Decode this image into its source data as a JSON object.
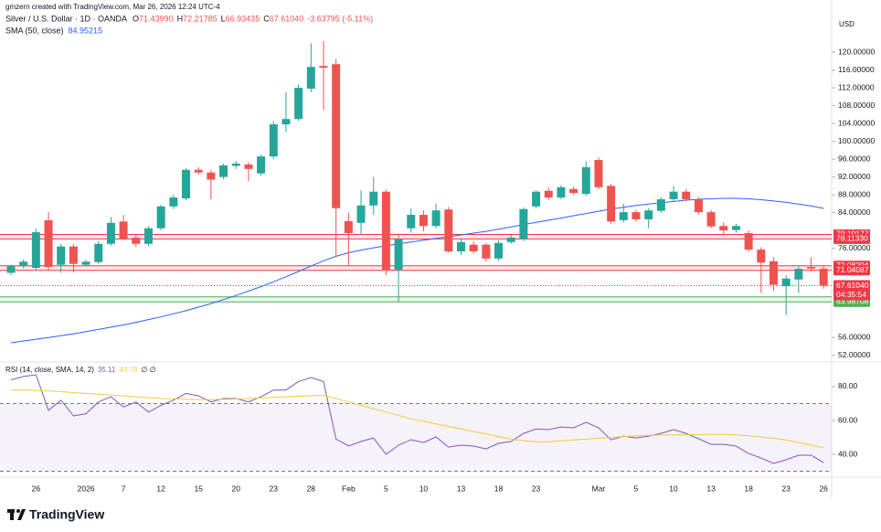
{
  "header": {
    "created": "gmzern created with TradingView.com, Mar 26, 2026 12:24 UTC-4"
  },
  "footer": {
    "brand": "TradingView"
  },
  "chart_data": [
    {
      "type": "candlestick",
      "title": "Silver / U.S. Dollar · 1D · OANDA",
      "ohlc": [
        "O",
        "71.43990",
        "H",
        "72.21785",
        "L",
        "66.93435",
        "C",
        "67.61040",
        "-3.63795 (-5.11%)"
      ],
      "axis_label": "USD",
      "up_color": "#26a69a",
      "down_color": "#ef5350",
      "categories": [
        null,
        null,
        "26",
        null,
        null,
        null,
        "2026",
        null,
        null,
        "7",
        null,
        null,
        "12",
        null,
        null,
        "15",
        null,
        null,
        "20",
        null,
        null,
        "23",
        null,
        null,
        "28",
        null,
        null,
        "Feb",
        null,
        null,
        "5",
        null,
        null,
        "10",
        null,
        null,
        "13",
        null,
        null,
        "18",
        null,
        null,
        "23",
        null,
        null,
        null,
        null,
        "Mar",
        null,
        null,
        "5",
        null,
        null,
        "10",
        null,
        null,
        "13",
        null,
        null,
        "18",
        null,
        null,
        "23",
        null,
        null,
        "26"
      ],
      "open": [
        70.5,
        72,
        71.6,
        82.3,
        72.3,
        76.4,
        72.3,
        72.9,
        77,
        82,
        78.4,
        77,
        80.5,
        85.4,
        87.2,
        93.6,
        93,
        92,
        94.5,
        94.8,
        92.8,
        96.6,
        103.8,
        105,
        111.8,
        116.9,
        117.3,
        82.1,
        81.7,
        85.6,
        88.7,
        71.2,
        80.5,
        83.5,
        81,
        84.7,
        75.3,
        76.8,
        76.8,
        73.7,
        77.4,
        78,
        85.4,
        88.9,
        87.4,
        89.3,
        88.2,
        95.8,
        90,
        82.3,
        84.1,
        82.5,
        84.4,
        87,
        88.7,
        87,
        84.1,
        81,
        80.1,
        79.4,
        75.7,
        73.1,
        67.5,
        69,
        71.8,
        71.4399
      ],
      "high": [
        72.3,
        73.5,
        80.4,
        84.1,
        77,
        77,
        73.4,
        77.6,
        83,
        83.5,
        79,
        81,
        85.8,
        88,
        94,
        94.2,
        93.6,
        95,
        95.6,
        95.3,
        97,
        104.5,
        111,
        112.8,
        122,
        122.5,
        118.5,
        84,
        89,
        92,
        89.2,
        79,
        85,
        84.5,
        86,
        85.3,
        78,
        77.5,
        77.2,
        77.8,
        79,
        85.2,
        89,
        89.6,
        90.2,
        89.8,
        95.5,
        96.4,
        90.5,
        86,
        84.6,
        85,
        87.5,
        90,
        89.3,
        87.5,
        84.6,
        81.8,
        81.5,
        80,
        76.2,
        74,
        70,
        72,
        74,
        72.21785
      ],
      "low": [
        70,
        71.5,
        71,
        71,
        70.5,
        70.6,
        71.8,
        72.5,
        76.5,
        77.8,
        76.3,
        76.5,
        80,
        84.8,
        86.8,
        92.5,
        87,
        91.5,
        93.8,
        91,
        92.3,
        96,
        102,
        104.5,
        111,
        107,
        74,
        72,
        79,
        83.5,
        70,
        64,
        79.5,
        79.8,
        80.5,
        75,
        74.5,
        74.8,
        73,
        73.2,
        77,
        77.6,
        85,
        86.8,
        87,
        88,
        87.8,
        89.2,
        81.5,
        81.8,
        82,
        80.5,
        84,
        86.5,
        86.5,
        83.6,
        80.5,
        79,
        79.5,
        75.2,
        66,
        66.5,
        61,
        66,
        70.8,
        66.93435
      ],
      "close": [
        72,
        73,
        79.6,
        71.8,
        76.4,
        72.5,
        73,
        77,
        81.7,
        78,
        77,
        80.5,
        85.4,
        87.4,
        93.6,
        93,
        91.4,
        94.6,
        95,
        93.8,
        96.6,
        103.8,
        105,
        112,
        116.7,
        116.5,
        85,
        79.4,
        85.6,
        88.7,
        71.2,
        78,
        83.5,
        81,
        84.5,
        75.3,
        77.4,
        75.3,
        73.7,
        77.2,
        78.4,
        84.8,
        88.7,
        87.4,
        89.7,
        88.4,
        94.2,
        89.7,
        82,
        84.1,
        82.5,
        84.5,
        87,
        88.7,
        87,
        84.1,
        80.9,
        80,
        81,
        75.7,
        72.8,
        67.8,
        69.2,
        71.4,
        71.44,
        67.6104
      ],
      "series": [
        {
          "name": "SMA (50, close)",
          "value_label": "84.95215",
          "color": "#2962ff",
          "values": [
            54.8,
            55.2,
            55.6,
            56.0,
            56.4,
            56.8,
            57.3,
            57.8,
            58.3,
            58.8,
            59.4,
            60.0,
            60.6,
            61.3,
            62.0,
            62.8,
            63.6,
            64.5,
            65.4,
            66.4,
            67.4,
            68.5,
            69.6,
            70.8,
            72.0,
            73.2,
            74.2,
            75.0,
            75.6,
            76.1,
            76.6,
            77.0,
            77.4,
            77.8,
            78.2,
            78.6,
            79.0,
            79.4,
            79.8,
            80.3,
            80.8,
            81.3,
            81.8,
            82.3,
            82.8,
            83.3,
            83.8,
            84.3,
            84.8,
            85.2,
            85.6,
            85.9,
            86.2,
            86.5,
            86.8,
            87.0,
            87.1,
            87.2,
            87.2,
            87.1,
            86.9,
            86.6,
            86.3,
            85.9,
            85.5,
            84.95215
          ]
        }
      ],
      "zones": [
        {
          "color": "#f23645",
          "levels": [
            {
              "value": 79.10177,
              "label": "79.10177"
            },
            {
              "value": 78.1133,
              "label": "78.11330"
            }
          ]
        },
        {
          "color": "#f23645",
          "levels": [
            {
              "value": 72.08204,
              "label": "72.08204"
            },
            {
              "value": 71.04087,
              "label": "71.04087"
            }
          ]
        },
        {
          "color": "#4caf50",
          "levels": [
            {
              "value": 65.10069,
              "label": "65.10069"
            },
            {
              "value": 63.98708,
              "label": "63.98708"
            }
          ]
        }
      ],
      "last_price": {
        "value": 67.6104,
        "label": "67.61040",
        "countdown": "04:35:54",
        "color": "#f23645"
      },
      "ylim": [
        50.7,
        131.7
      ],
      "yticks": [
        {
          "value": 52,
          "label": "52.00000"
        },
        {
          "value": 56,
          "label": "56.00000"
        },
        {
          "value": 76,
          "label": "76.00000"
        },
        {
          "value": 84,
          "label": "84.00000"
        },
        {
          "value": 88,
          "label": "88.00000"
        },
        {
          "value": 92,
          "label": "92.00000"
        },
        {
          "value": 96,
          "label": "96.00000"
        },
        {
          "value": 100,
          "label": "100.00000"
        },
        {
          "value": 104,
          "label": "104.00000"
        },
        {
          "value": 108,
          "label": "108.00000"
        },
        {
          "value": 112,
          "label": "112.00000"
        },
        {
          "value": 116,
          "label": "116.00000"
        },
        {
          "value": 120,
          "label": "120.00000"
        }
      ]
    },
    {
      "type": "line",
      "title": "RSI (14, close, SMA, 14, 2)",
      "extra": "∅ ∅",
      "series": [
        {
          "value_label": "35.11",
          "color": "#7e57c2",
          "values": [
            84,
            86,
            87,
            66,
            72,
            62.7,
            64,
            71,
            74,
            68,
            71,
            64.9,
            69,
            72,
            76,
            74.6,
            71,
            73,
            73,
            71,
            74,
            78,
            78,
            83,
            85.4,
            83,
            49,
            45,
            47.6,
            49.7,
            40,
            45.4,
            48.6,
            47,
            50.3,
            44.3,
            45.4,
            44.9,
            43.2,
            46.5,
            47.6,
            52.4,
            55,
            54.6,
            56.2,
            55.7,
            58.9,
            55.7,
            48.6,
            50.8,
            49.7,
            50.8,
            52.4,
            54.6,
            52.4,
            49.2,
            45.9,
            45.9,
            44.9,
            40.5,
            37.8,
            34.6,
            36.8,
            39.5,
            39.5,
            35.11
          ]
        },
        {
          "value_label": "43.79",
          "color": "#f5c842",
          "values": [
            78,
            78,
            77.8,
            77.5,
            77,
            76.5,
            76,
            75.5,
            75,
            74.5,
            74,
            73.5,
            73,
            72.8,
            72.6,
            72.4,
            72.4,
            72.5,
            72.7,
            73,
            73.3,
            73.6,
            74,
            74.3,
            74.6,
            74.8,
            73,
            71,
            69,
            67,
            65,
            63,
            61,
            59.5,
            58,
            56.5,
            55,
            53.5,
            52,
            50.5,
            49,
            48,
            47.5,
            47.5,
            48,
            48.5,
            49,
            49.5,
            50,
            50.5,
            51,
            51.2,
            51.4,
            51.5,
            51.6,
            51.7,
            51.8,
            51.8,
            51.5,
            51,
            50.3,
            49.5,
            48.5,
            47,
            45.5,
            43.79
          ]
        }
      ],
      "band": [
        30,
        70
      ],
      "band_color": "#7e57c2",
      "ylim": [
        27.6,
        93.5
      ],
      "yticks": [
        {
          "value": 40,
          "label": "40.00"
        },
        {
          "value": 60,
          "label": "60.00"
        },
        {
          "value": 80,
          "label": "80.00"
        }
      ]
    }
  ]
}
